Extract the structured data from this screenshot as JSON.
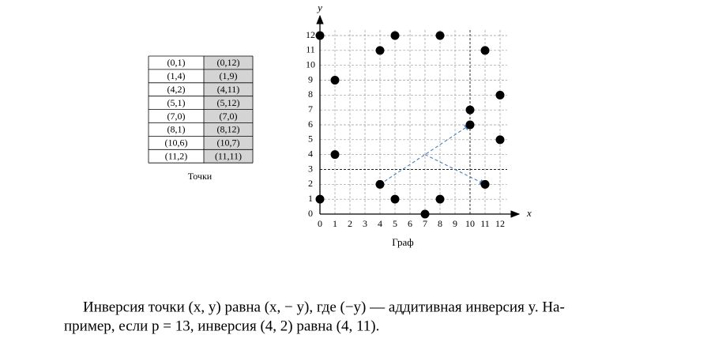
{
  "table": {
    "rows": [
      [
        "(0,1)",
        "(0,12)"
      ],
      [
        "(1,4)",
        "(1,9)"
      ],
      [
        "(4,2)",
        "(4,11)"
      ],
      [
        "(5,1)",
        "(5,12)"
      ],
      [
        "(7,0)",
        "(7,0)"
      ],
      [
        "(8,1)",
        "(8,12)"
      ],
      [
        "(10,6)",
        "(10,7)"
      ],
      [
        "(11,2)",
        "(11,11)"
      ]
    ],
    "caption": "Точки"
  },
  "chart_data": {
    "type": "scatter",
    "caption": "Граф",
    "x_label": "x",
    "y_label": "y",
    "x": [
      0,
      0,
      1,
      1,
      4,
      4,
      5,
      5,
      7,
      8,
      8,
      10,
      10,
      11,
      11,
      12,
      12
    ],
    "values": [
      1,
      12,
      4,
      9,
      2,
      11,
      1,
      12,
      0,
      1,
      12,
      6,
      7,
      2,
      11,
      5,
      8
    ],
    "color": "#000000",
    "xlim": [
      0,
      12
    ],
    "ylim": [
      0,
      12
    ],
    "xticks": [
      0,
      1,
      2,
      3,
      4,
      5,
      6,
      7,
      8,
      9,
      10,
      11,
      12
    ],
    "yticks": [
      0,
      1,
      2,
      3,
      4,
      5,
      6,
      7,
      8,
      9,
      10,
      11,
      12
    ],
    "grid": true,
    "xline": 10,
    "yline": 3,
    "arrows": [
      {
        "from": [
          4,
          2
        ],
        "to": [
          10,
          6
        ]
      },
      {
        "from": [
          7,
          4
        ],
        "to": [
          11,
          2
        ]
      }
    ],
    "arrow_color": "#4a7ebb"
  },
  "paragraph": [
    "Инверсия точки (x, y) равна (x, − y), где (−y) — аддитивная инверсия y. На-",
    "пример, если p = 13, инверсия (4, 2) равна (4, 11)."
  ]
}
